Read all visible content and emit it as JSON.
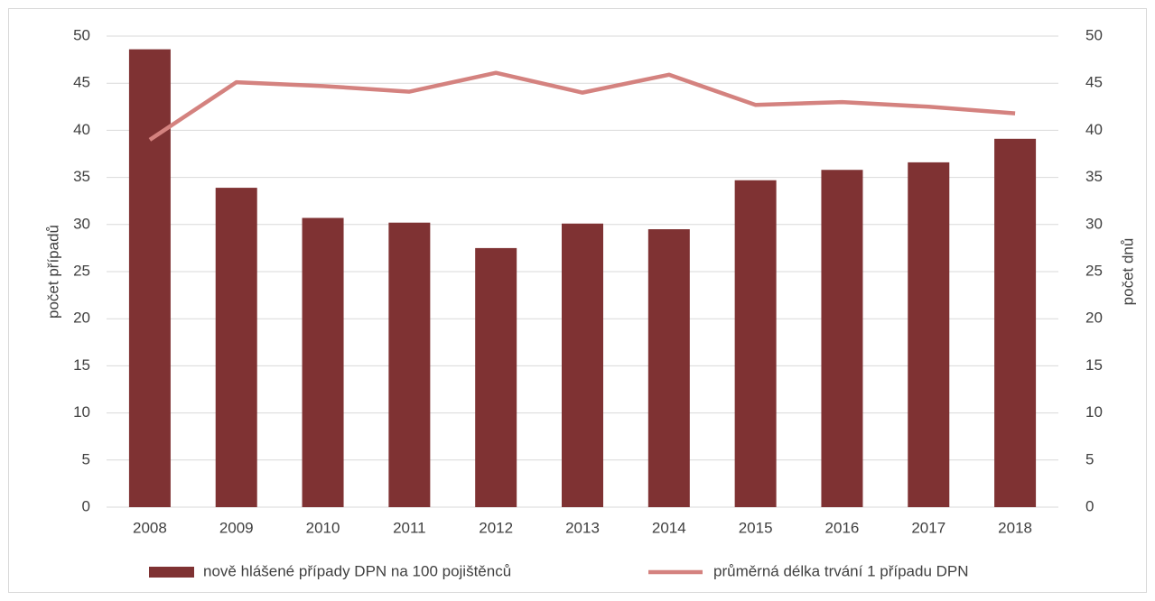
{
  "chart_data": {
    "type": "bar",
    "categories": [
      "2008",
      "2009",
      "2010",
      "2011",
      "2012",
      "2013",
      "2014",
      "2015",
      "2016",
      "2017",
      "2018"
    ],
    "series": [
      {
        "name": "nově hlášené případy DPN na 100 pojištěnců",
        "color": "#7f3233",
        "type": "bar",
        "values": [
          48.6,
          33.9,
          30.7,
          30.2,
          27.5,
          30.1,
          29.5,
          34.7,
          35.8,
          36.6,
          39.1
        ]
      },
      {
        "name": "průměrná délka trvání 1 případu DPN",
        "color": "#d4827f",
        "type": "line",
        "axis": "y2",
        "values": [
          39.0,
          45.1,
          44.7,
          44.1,
          46.1,
          44.0,
          45.9,
          42.7,
          43.0,
          42.5,
          41.8
        ]
      }
    ],
    "ylabel": "počet případů",
    "y2label": "počet dnů",
    "ylim": [
      0,
      50
    ],
    "yticks": [
      0,
      5,
      10,
      15,
      20,
      25,
      30,
      35,
      40,
      45,
      50
    ],
    "y2lim": [
      0,
      50
    ],
    "y2ticks": [
      0,
      5,
      10,
      15,
      20,
      25,
      30,
      35,
      40,
      45,
      50
    ],
    "grid": true,
    "legend": "bottom"
  }
}
